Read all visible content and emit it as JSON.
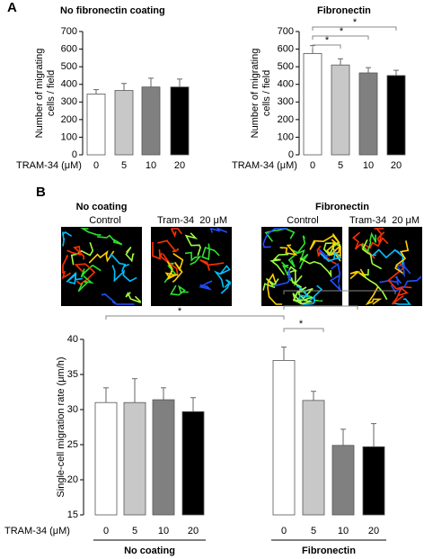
{
  "chart_data": [
    {
      "type": "bar",
      "panel": "A",
      "title": "No fibronectin coating",
      "ylabel": [
        "Number of migrating",
        "cells / field"
      ],
      "xlabel": "TRAM-34 (μM)",
      "categories": [
        "0",
        "5",
        "10",
        "20"
      ],
      "values": [
        345,
        365,
        385,
        385
      ],
      "errors": [
        25,
        40,
        50,
        45
      ],
      "colors": [
        "#ffffff",
        "#c8c8c8",
        "#808080",
        "#000000"
      ],
      "ylim": [
        0,
        700
      ],
      "yticks": [
        0,
        100,
        200,
        300,
        400,
        500,
        600,
        700
      ]
    },
    {
      "type": "bar",
      "title": "Fibronectin",
      "ylabel": [
        "Number of migrating",
        "cells / field"
      ],
      "xlabel": "TRAM-34 (μM)",
      "categories": [
        "0",
        "5",
        "10",
        "20"
      ],
      "values": [
        575,
        510,
        465,
        450
      ],
      "errors": [
        45,
        35,
        30,
        30
      ],
      "colors": [
        "#ffffff",
        "#c8c8c8",
        "#808080",
        "#000000"
      ],
      "ylim": [
        0,
        700
      ],
      "yticks": [
        0,
        100,
        200,
        300,
        400,
        500,
        600,
        700
      ],
      "annotations": [
        "*",
        "*",
        "*"
      ]
    },
    {
      "type": "grouped-bar",
      "panel": "B",
      "ylabel": "Single-cell migration rate (μm/h)",
      "xlabel": "TRAM-34 (μM)",
      "categories": [
        "0",
        "5",
        "10",
        "20"
      ],
      "groups": [
        {
          "name": "No coating",
          "values": [
            31,
            31,
            31.4,
            29.7
          ],
          "errors": [
            2.1,
            3.4,
            1.7,
            2
          ]
        },
        {
          "name": "Fibronectin",
          "values": [
            37,
            31.3,
            24.9,
            24.7
          ],
          "errors": [
            1.9,
            1.3,
            2.3,
            3.3
          ]
        }
      ],
      "colors": [
        "#ffffff",
        "#c8c8c8",
        "#808080",
        "#000000"
      ],
      "ylim": [
        15,
        40
      ],
      "yticks": [
        15,
        20,
        25,
        30,
        35,
        40
      ],
      "annotations": [
        "*",
        "*",
        "*",
        "*"
      ]
    }
  ],
  "images": [
    {
      "title": "No coating",
      "labels": [
        "Control",
        "Tram-34  20 μM"
      ]
    },
    {
      "title": "Fibronectin",
      "labels": [
        "Control",
        "Tram-34  20 μM"
      ]
    }
  ]
}
